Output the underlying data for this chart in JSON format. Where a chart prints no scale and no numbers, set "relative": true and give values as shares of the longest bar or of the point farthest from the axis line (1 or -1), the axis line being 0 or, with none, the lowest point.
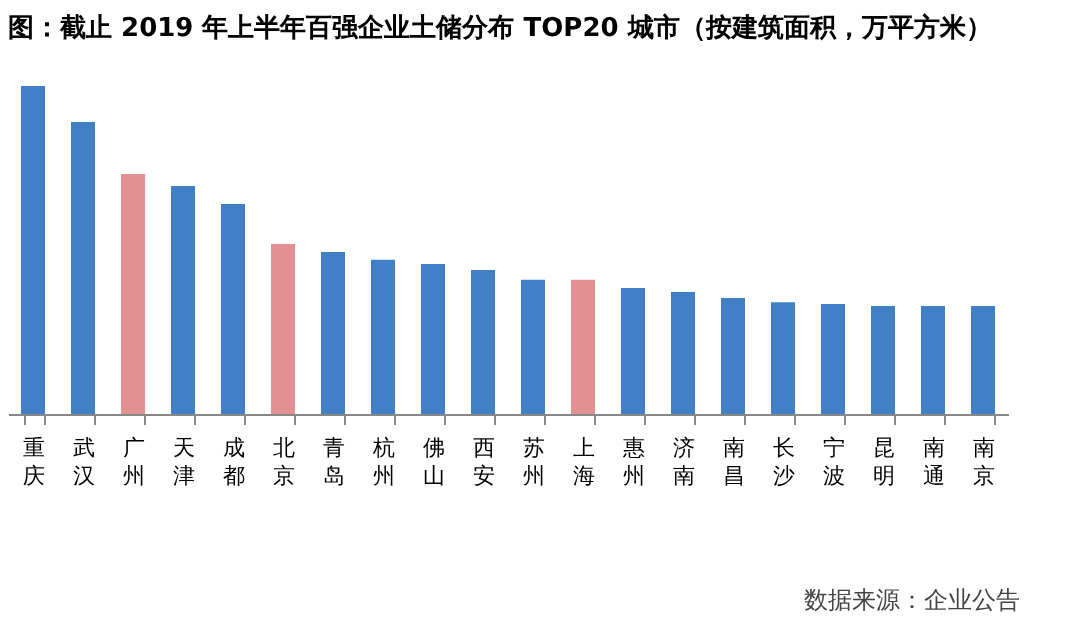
{
  "chart_data": {
    "type": "bar",
    "title": "图：截止 2019 年上半年百强企业土储分布 TOP20 城市（按建筑面积，万平方米）",
    "relative": true,
    "categories": [
      "重庆",
      "武汉",
      "广州",
      "天津",
      "成都",
      "北京",
      "青岛",
      "杭州",
      "佛山",
      "西安",
      "苏州",
      "上海",
      "惠州",
      "济南",
      "南昌",
      "长沙",
      "宁波",
      "昆明",
      "南通",
      "南京"
    ],
    "values": [
      1,
      0.89,
      0.732,
      0.695,
      0.64,
      0.518,
      0.494,
      0.47,
      0.457,
      0.439,
      0.409,
      0.409,
      0.384,
      0.372,
      0.354,
      0.341,
      0.335,
      0.329,
      0.329,
      0.329
    ],
    "colors": [
      "#4180c6",
      "#4180c6",
      "#e39093",
      "#4180c6",
      "#4180c6",
      "#e39093",
      "#4180c6",
      "#4180c6",
      "#4180c6",
      "#4180c6",
      "#4180c6",
      "#e39093",
      "#4180c6",
      "#4180c6",
      "#4180c6",
      "#4180c6",
      "#4180c6",
      "#4180c6",
      "#4180c6",
      "#4180c6"
    ],
    "annotations": [
      "数据来源：企业公告"
    ]
  }
}
